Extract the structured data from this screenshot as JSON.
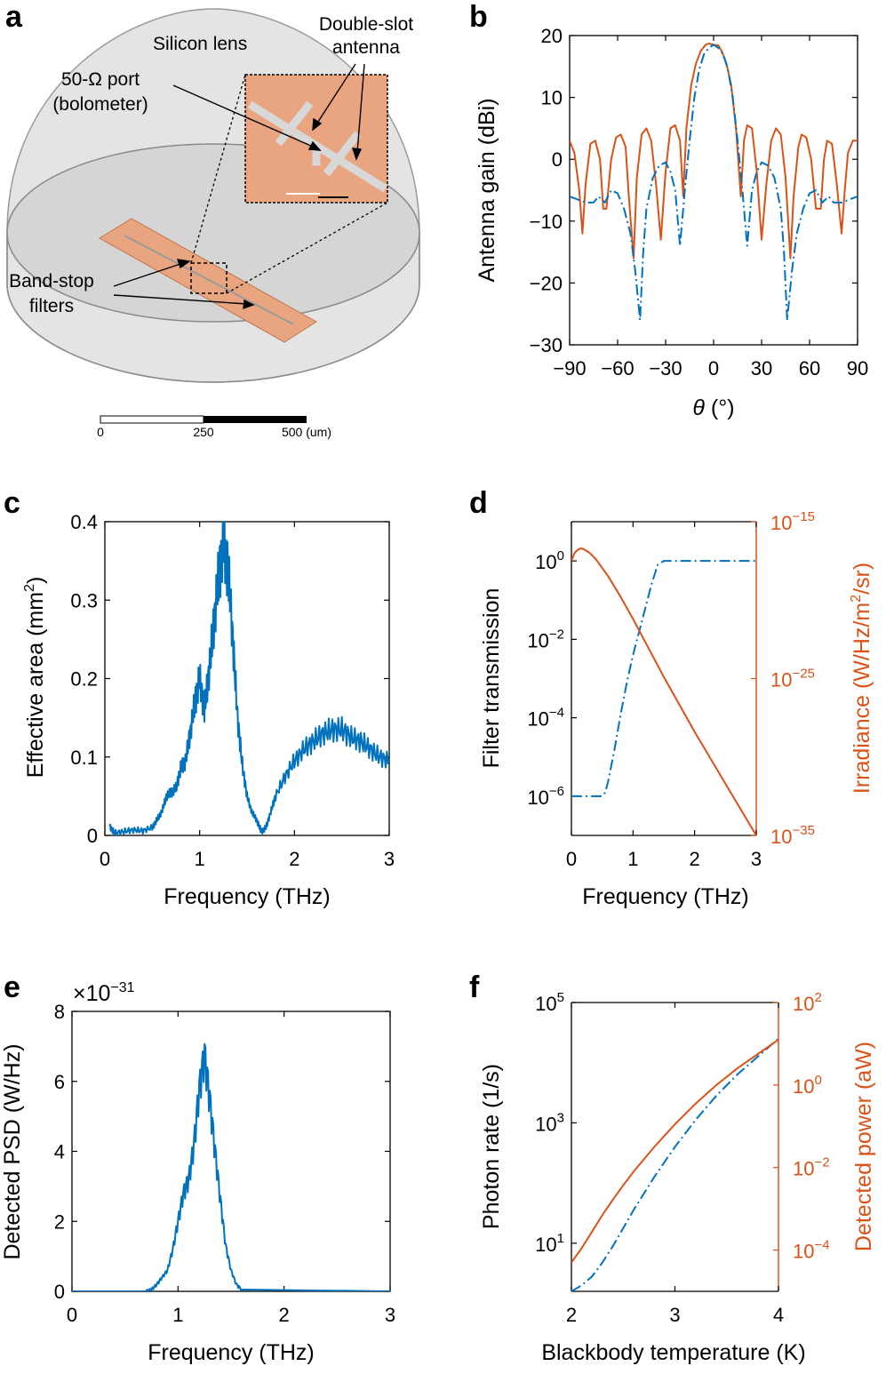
{
  "panels": {
    "a": "a",
    "b": "b",
    "c": "c",
    "d": "d",
    "e": "e",
    "f": "f"
  },
  "panel_a": {
    "labels": {
      "lens": "Silicon lens",
      "antenna_1": "Double-slot",
      "antenna_2": "antenna",
      "port_1": "50-Ω port",
      "port_2": "(bolometer)",
      "filters_1": "Band-stop",
      "filters_2": "filters"
    },
    "scalebar": {
      "t0": "0",
      "t1": "250",
      "t2": "500 (um)"
    },
    "colors": {
      "metal": "#e9a580",
      "lens": "#dcdcdc"
    }
  },
  "chart_data": [
    {
      "id": "b",
      "type": "line",
      "xlabel_var": "θ",
      "xlabel_unit": " (°)",
      "ylabel": "Antenna gain (dBi)",
      "xlim": [
        -90,
        90
      ],
      "ylim": [
        -30,
        20
      ],
      "xticks": [
        "−90",
        "−60",
        "−30",
        "0",
        "30",
        "60",
        "90"
      ],
      "yticks": [
        "20",
        "10",
        "0",
        "−10",
        "−20",
        "−30"
      ],
      "series": [
        {
          "style": "solid",
          "color": "#d95319",
          "x": [
            -90,
            -87,
            -84,
            -82,
            -80,
            -77,
            -74,
            -71,
            -69,
            -67,
            -64,
            -61,
            -58,
            -55,
            -53,
            -50,
            -48,
            -45,
            -42,
            -39,
            -36,
            -33,
            -30,
            -27,
            -24,
            -21,
            -19,
            -17,
            -14,
            -11,
            -8,
            -5,
            -3,
            0,
            3,
            5,
            8,
            11,
            14,
            17,
            19,
            21,
            24,
            27,
            30,
            33,
            36,
            39,
            42,
            45,
            48,
            50,
            53,
            55,
            58,
            61,
            64,
            67,
            69,
            71,
            74,
            77,
            80,
            82,
            84,
            87,
            90
          ],
          "y": [
            3,
            1,
            -5,
            -12,
            -4,
            2.5,
            3,
            0,
            -8,
            -8,
            0,
            3.5,
            4,
            2,
            -6,
            -16,
            -3,
            4,
            5,
            3,
            -4,
            -13,
            -2,
            5,
            5.5,
            3,
            -6,
            5,
            12,
            15.5,
            17.5,
            18.5,
            18.7,
            18.5,
            18.4,
            17.5,
            15.5,
            12,
            5,
            -6,
            3,
            5.5,
            5,
            -2,
            -13,
            -4,
            3,
            5,
            4,
            -3,
            -16,
            -6,
            2,
            4,
            3.5,
            0,
            -8,
            -8,
            0,
            3,
            2.5,
            -4,
            -12,
            -5,
            1,
            3,
            3
          ]
        },
        {
          "style": "dashdot",
          "color": "#0072bd",
          "x": [
            -90,
            -85,
            -80,
            -75,
            -72,
            -68,
            -64,
            -60,
            -56,
            -52,
            -49,
            -46,
            -44,
            -42,
            -38,
            -34,
            -30,
            -27,
            -24,
            -21,
            -18,
            -15,
            -12,
            -9,
            -6,
            -3,
            0,
            3,
            6,
            9,
            12,
            15,
            18,
            21,
            24,
            27,
            30,
            34,
            38,
            42,
            44,
            46,
            49,
            52,
            56,
            60,
            64,
            68,
            72,
            75,
            80,
            85,
            90
          ],
          "y": [
            -6,
            -6.5,
            -7,
            -7,
            -6,
            -7,
            -5,
            -5.5,
            -8,
            -12,
            -18,
            -26,
            -15,
            -8,
            -3,
            -1,
            -0.5,
            -2,
            -5,
            -14,
            -5,
            3,
            10,
            14.5,
            17,
            18,
            18.5,
            18,
            17,
            14.5,
            10,
            3,
            -5,
            -14,
            -5,
            -2,
            -0.5,
            -1,
            -3,
            -8,
            -15,
            -26,
            -18,
            -12,
            -8,
            -5.5,
            -5,
            -7,
            -6,
            -7,
            -7,
            -6.5,
            -6
          ]
        }
      ]
    },
    {
      "id": "c",
      "type": "line",
      "xlabel": "Frequency (THz)",
      "ylabel_main": "Effective area (mm",
      "ylabel_sup": "2",
      "ylabel_end": ")",
      "xlim": [
        0,
        3
      ],
      "ylim": [
        0,
        0.4
      ],
      "xticks": [
        "0",
        "1",
        "2",
        "3"
      ],
      "yticks": [
        "0.4",
        "0.3",
        "0.2",
        "0.1",
        "0"
      ],
      "series": [
        {
          "style": "solid",
          "color": "#0072bd",
          "x": [
            0.05,
            0.1,
            0.2,
            0.3,
            0.4,
            0.5,
            0.55,
            0.6,
            0.65,
            0.7,
            0.75,
            0.8,
            0.85,
            0.9,
            0.95,
            1.0,
            1.05,
            1.1,
            1.15,
            1.2,
            1.25,
            1.3,
            1.35,
            1.4,
            1.45,
            1.5,
            1.55,
            1.6,
            1.65,
            1.7,
            1.75,
            1.8,
            1.9,
            2.0,
            2.1,
            2.2,
            2.3,
            2.4,
            2.5,
            2.6,
            2.7,
            2.8,
            2.9,
            3.0
          ],
          "y": [
            0.012,
            0.003,
            0.005,
            0.007,
            0.006,
            0.01,
            0.02,
            0.03,
            0.05,
            0.055,
            0.06,
            0.085,
            0.095,
            0.13,
            0.17,
            0.2,
            0.16,
            0.21,
            0.27,
            0.33,
            0.37,
            0.34,
            0.25,
            0.15,
            0.09,
            0.05,
            0.03,
            0.02,
            0.005,
            0.01,
            0.03,
            0.05,
            0.075,
            0.095,
            0.11,
            0.12,
            0.13,
            0.135,
            0.135,
            0.125,
            0.12,
            0.11,
            0.1,
            0.095
          ]
        }
      ]
    },
    {
      "id": "d",
      "type": "line",
      "xlabel": "Frequency (THz)",
      "ylabel_left": "Filter transmission",
      "ylabel_right_main": "Irradiance (W/Hz/m",
      "ylabel_right_sup": "2",
      "ylabel_right_end": "/sr)",
      "xlim": [
        0,
        3
      ],
      "ylim_left_log10": [
        -7,
        1
      ],
      "ylim_right_log10": [
        -35,
        -15
      ],
      "xticks": [
        "0",
        "1",
        "2",
        "3"
      ],
      "yticks_left": [
        {
          "base": "10",
          "exp": "0"
        },
        {
          "base": "10",
          "exp": "−2"
        },
        {
          "base": "10",
          "exp": "−4"
        },
        {
          "base": "10",
          "exp": "−6"
        }
      ],
      "yticks_right": [
        {
          "base": "10",
          "exp": "−15"
        },
        {
          "base": "10",
          "exp": "−25"
        },
        {
          "base": "10",
          "exp": "−35"
        }
      ],
      "series": [
        {
          "name_axis": "left",
          "style": "dashdot",
          "color": "#0072bd",
          "x": [
            0,
            0.5,
            0.55,
            0.6,
            0.7,
            0.8,
            0.9,
            1.0,
            1.1,
            1.2,
            1.3,
            1.4,
            1.5,
            3.0
          ],
          "log10y": [
            -6,
            -6,
            -5.9,
            -5.6,
            -4.8,
            -3.9,
            -3.1,
            -2.4,
            -1.8,
            -1.2,
            -0.6,
            -0.1,
            0,
            0
          ]
        },
        {
          "name_axis": "right",
          "style": "solid",
          "color": "#d95319",
          "x": [
            0,
            0.05,
            0.1,
            0.15,
            0.2,
            0.3,
            0.4,
            0.6,
            0.8,
            1.0,
            1.5,
            2.0,
            2.5,
            3.0
          ],
          "log10y": [
            -17.5,
            -17.0,
            -16.8,
            -16.7,
            -16.75,
            -17.0,
            -17.4,
            -18.5,
            -19.8,
            -21.2,
            -24.9,
            -28.4,
            -31.7,
            -35
          ]
        }
      ]
    },
    {
      "id": "e",
      "type": "line",
      "xlabel": "Frequency (THz)",
      "ylabel": "Detected PSD (W/Hz)",
      "scale_base": "×10",
      "scale_exp": "−31",
      "xlim": [
        0,
        3
      ],
      "ylim": [
        0,
        8
      ],
      "xticks": [
        "0",
        "1",
        "2",
        "3"
      ],
      "yticks": [
        "8",
        "6",
        "4",
        "2",
        "0"
      ],
      "series": [
        {
          "style": "solid",
          "color": "#0072bd",
          "x": [
            0,
            0.7,
            0.75,
            0.8,
            0.85,
            0.9,
            0.95,
            1.0,
            1.05,
            1.1,
            1.15,
            1.2,
            1.25,
            1.3,
            1.35,
            1.4,
            1.45,
            1.5,
            1.55,
            1.6,
            3.0
          ],
          "y": [
            0,
            0,
            0.05,
            0.2,
            0.4,
            0.6,
            1.2,
            2.0,
            2.8,
            3.2,
            4.2,
            5.8,
            6.8,
            5.5,
            4.0,
            2.6,
            1.3,
            0.6,
            0.2,
            0.05,
            0
          ]
        }
      ]
    },
    {
      "id": "f",
      "type": "line",
      "xlabel": "Blackbody temperature (K)",
      "ylabel_left": "Photon rate (1/s)",
      "ylabel_right": "Detected power (aW)",
      "xlim": [
        2,
        4
      ],
      "ylim_left_log10": [
        0.2,
        5
      ],
      "ylim_right_log10": [
        -5,
        2
      ],
      "xticks": [
        "2",
        "3",
        "4"
      ],
      "yticks_left": [
        {
          "base": "10",
          "exp": "5"
        },
        {
          "base": "10",
          "exp": "3"
        },
        {
          "base": "10",
          "exp": "1"
        }
      ],
      "yticks_right": [
        {
          "base": "10",
          "exp": "2"
        },
        {
          "base": "10",
          "exp": "0"
        },
        {
          "base": "10",
          "exp": "−2"
        },
        {
          "base": "10",
          "exp": "−4"
        }
      ],
      "series": [
        {
          "name_axis": "left",
          "style": "dashdot",
          "color": "#0072bd",
          "x": [
            2,
            2.1,
            2.2,
            2.3,
            2.4,
            2.5,
            2.6,
            2.8,
            3.0,
            3.2,
            3.4,
            3.6,
            3.8,
            4.0
          ],
          "log10y": [
            0.2,
            0.3,
            0.45,
            0.68,
            0.95,
            1.25,
            1.55,
            2.1,
            2.6,
            3.05,
            3.45,
            3.8,
            4.1,
            4.4
          ]
        },
        {
          "name_axis": "right",
          "style": "solid",
          "color": "#d95319",
          "x": [
            2,
            2.1,
            2.2,
            2.3,
            2.4,
            2.5,
            2.6,
            2.8,
            3.0,
            3.2,
            3.4,
            3.6,
            3.8,
            4.0
          ],
          "log10y": [
            -4.3,
            -3.95,
            -3.55,
            -3.15,
            -2.78,
            -2.43,
            -2.1,
            -1.5,
            -0.95,
            -0.45,
            0.0,
            0.4,
            0.75,
            1.1
          ]
        }
      ]
    }
  ]
}
